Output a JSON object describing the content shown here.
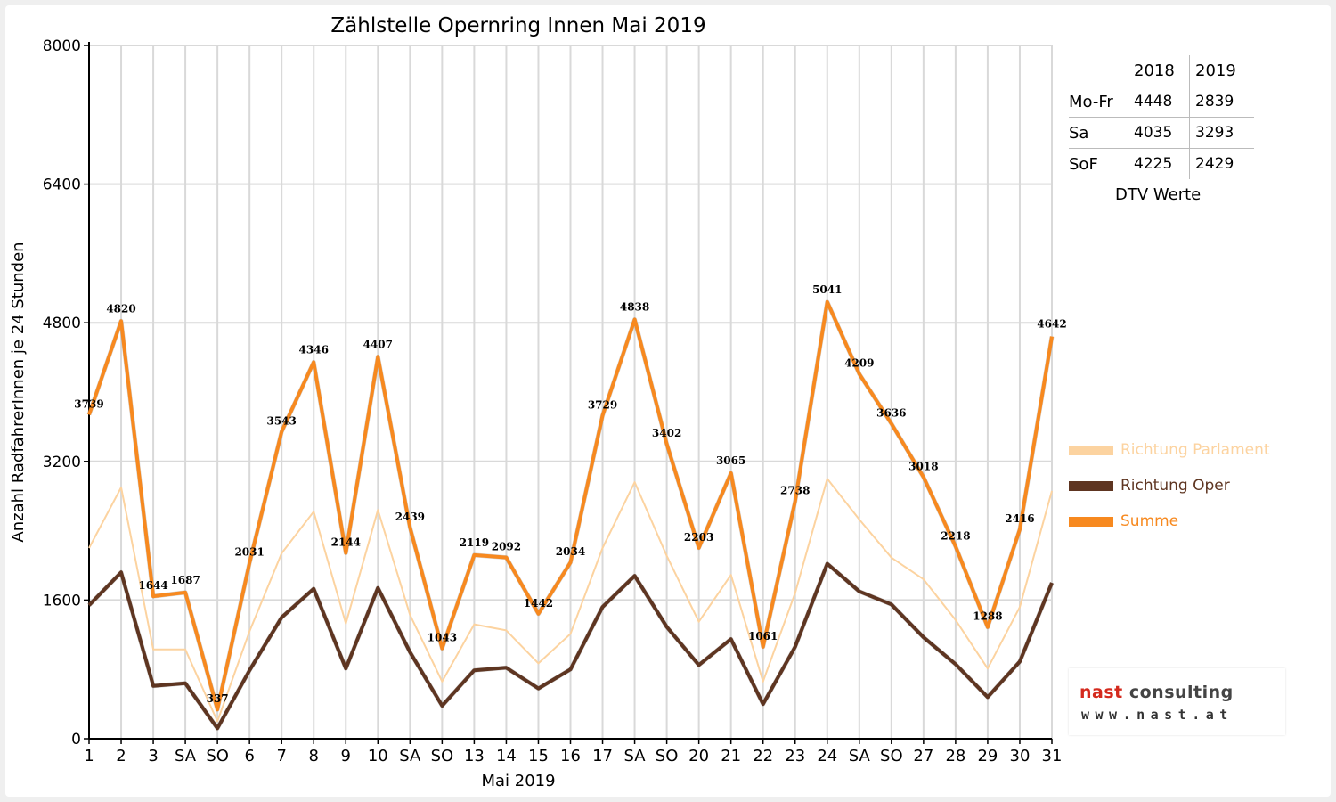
{
  "chart_data": {
    "type": "line",
    "title": "Zählstelle Opernring Innen Mai 2019",
    "xlabel": "Mai 2019",
    "ylabel": "Anzahl RadfahrerInnen je 24 Stunden",
    "ylim": [
      0,
      8000
    ],
    "yticks": [
      "0",
      "1600",
      "3200",
      "4800",
      "6400",
      "8000"
    ],
    "grid": true,
    "legend_position": "right",
    "categories": [
      "1",
      "2",
      "3",
      "SA",
      "SO",
      "6",
      "7",
      "8",
      "9",
      "10",
      "SA",
      "SO",
      "13",
      "14",
      "15",
      "16",
      "17",
      "SA",
      "SO",
      "20",
      "21",
      "22",
      "23",
      "24",
      "SA",
      "SO",
      "27",
      "28",
      "29",
      "30",
      "31"
    ],
    "highlight_categories": [
      0,
      4,
      11,
      18,
      25,
      29
    ],
    "series": [
      {
        "name": "Richtung Parlament",
        "color": "#fcd3a0",
        "values": [
          2200,
          2900,
          1030,
          1030,
          200,
          1240,
          2140,
          2620,
          1330,
          2640,
          1430,
          660,
          1320,
          1250,
          870,
          1210,
          2200,
          2960,
          2110,
          1350,
          1890,
          660,
          1680,
          3000,
          2530,
          2090,
          1840,
          1370,
          810,
          1520,
          2860
        ]
      },
      {
        "name": "Richtung Oper",
        "color": "#5e3521",
        "values": [
          1540,
          1920,
          610,
          640,
          120,
          790,
          1400,
          1730,
          810,
          1740,
          1000,
          380,
          790,
          820,
          580,
          800,
          1520,
          1880,
          1290,
          850,
          1150,
          400,
          1060,
          2020,
          1700,
          1550,
          1170,
          860,
          480,
          890,
          1800
        ]
      },
      {
        "name": "Summe",
        "color": "#f7891f",
        "values": [
          3739,
          4820,
          1644,
          1687,
          337,
          2031,
          3543,
          4346,
          2144,
          4407,
          2439,
          1043,
          2119,
          2092,
          1442,
          2034,
          3729,
          4838,
          3402,
          2203,
          3065,
          1061,
          2738,
          5041,
          4209,
          3636,
          3018,
          2218,
          1288,
          2416,
          4642
        ]
      }
    ],
    "data_labels": [
      "3739",
      "4820",
      "1644",
      "1687",
      "337",
      "2031",
      "3543",
      "4346",
      "2144",
      "4407",
      "2439",
      "1043",
      "2119",
      "2092",
      "1442",
      "2034",
      "3729",
      "4838",
      "3402",
      "2203",
      "3065",
      "1061",
      "2738",
      "5041",
      "4209",
      "3636",
      "3018",
      "2218",
      "1288",
      "2416",
      "4642"
    ]
  },
  "dtv_table": {
    "caption": "DTV Werte",
    "header": [
      "",
      "2018",
      "2019"
    ],
    "rows": [
      {
        "label": "Mo-Fr",
        "v2018": "4448",
        "v2019": "2839"
      },
      {
        "label": "Sa",
        "v2018": "4035",
        "v2019": "3293"
      },
      {
        "label": "SoF",
        "v2018": "4225",
        "v2019": "2429"
      }
    ]
  },
  "logo": {
    "name": "nast consulting",
    "url_text": "www.nast.at",
    "nast_color": "#d42a1e",
    "consulting_color": "#444444"
  },
  "colors": {
    "highlight": "#e00000",
    "grid": "#d9d9d9"
  }
}
